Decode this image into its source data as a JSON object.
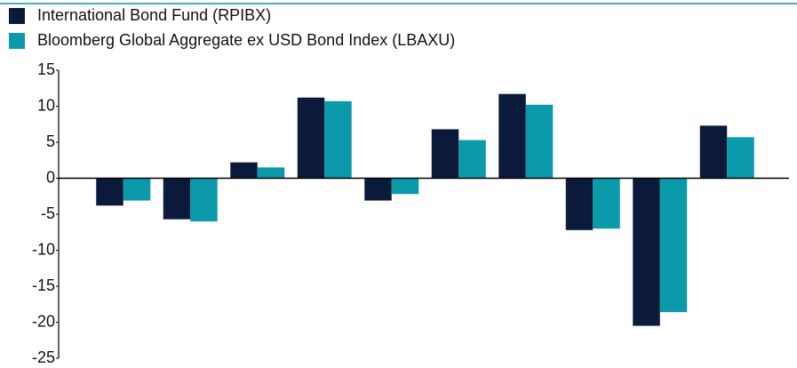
{
  "chart_data": {
    "type": "bar",
    "categories": [
      null,
      null,
      null,
      null,
      null,
      null,
      null,
      null,
      null,
      null
    ],
    "series": [
      {
        "name": "International Bond Fund (RPIBX)",
        "color": "#0b1a3a",
        "values": [
          -3.8,
          -5.7,
          2.2,
          11.2,
          -3.1,
          6.8,
          11.7,
          -7.2,
          -20.5,
          7.3
        ]
      },
      {
        "name": "Bloomberg Global Aggregate ex USD Bond Index (LBAXU)",
        "color": "#0a9aaa",
        "values": [
          -3.1,
          -6.0,
          1.5,
          10.7,
          -2.2,
          5.3,
          10.2,
          -7.0,
          -18.6,
          5.7
        ]
      }
    ],
    "ylim": [
      -25,
      15
    ],
    "yticks": [
      -25,
      -20,
      -15,
      -10,
      -5,
      0,
      5,
      10,
      15
    ],
    "grid": false
  }
}
